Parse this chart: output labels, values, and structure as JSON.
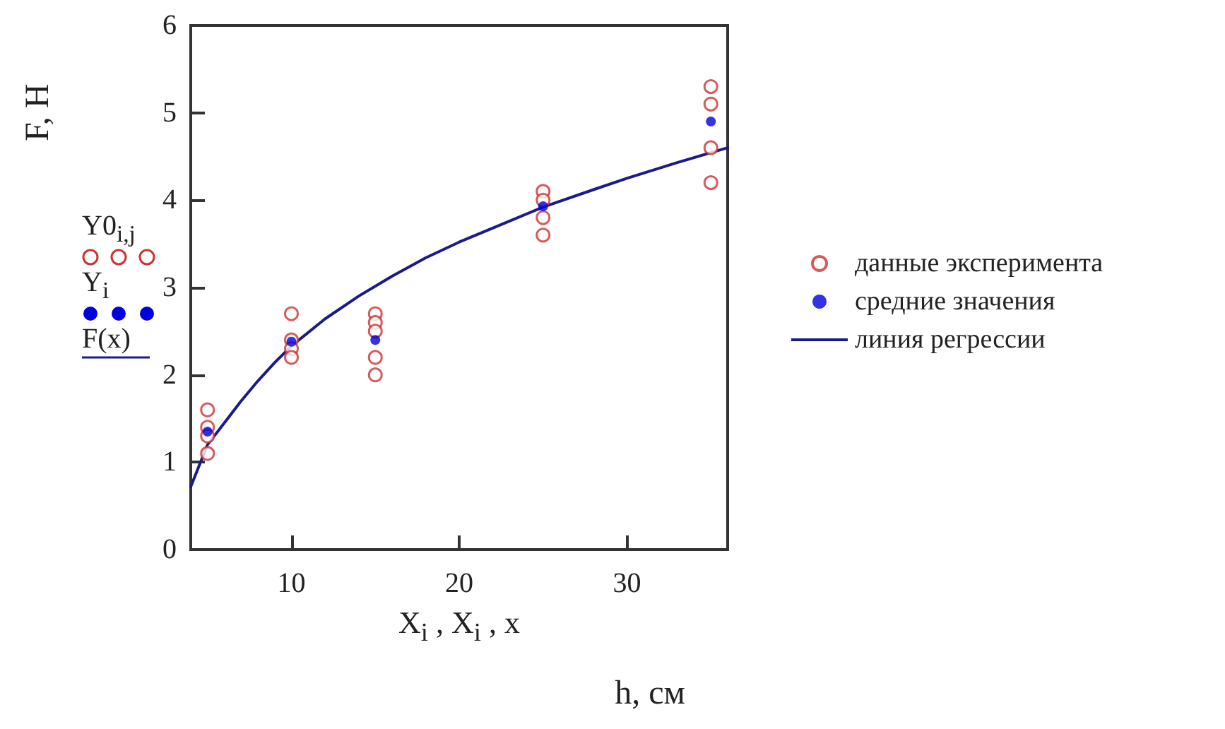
{
  "chart_data": {
    "type": "scatter",
    "ylabel": "F, H",
    "xlabel": "X$_{i}$ , X$_{i}$ , x",
    "annotations": [
      "Y0$_{i,j}$",
      "Y$_{i}$",
      "F(x)",
      "h, см"
    ],
    "series": [
      {
        "name": "данные эксперимента",
        "marker": "circle",
        "color": "#cc3333",
        "x": [
          5,
          5,
          5,
          5,
          10,
          10,
          10,
          10,
          15,
          15,
          15,
          15,
          15,
          25,
          25,
          25,
          25,
          35,
          35,
          35,
          35
        ],
        "values": [
          1.6,
          1.4,
          1.3,
          1.1,
          2.7,
          2.4,
          2.3,
          2.2,
          2.7,
          2.6,
          2.5,
          2.2,
          2.0,
          4.1,
          4.0,
          3.8,
          3.6,
          5.3,
          5.1,
          4.6,
          4.2
        ]
      },
      {
        "name": "средние значения",
        "marker": "circle",
        "color": "#0000dd",
        "x": [
          5,
          10,
          15,
          25,
          35
        ],
        "values": [
          1.35,
          2.38,
          2.4,
          3.93,
          4.9
        ]
      },
      {
        "name": "линия регрессии",
        "type": "line",
        "marker": "none",
        "color": "#1a1a8c",
        "x": [
          4,
          5,
          6,
          7,
          8,
          9,
          10,
          12,
          14,
          16,
          18,
          20,
          22,
          25,
          28,
          30,
          33,
          36
        ],
        "values": [
          0.72,
          1.2,
          1.45,
          1.7,
          1.93,
          2.14,
          2.33,
          2.64,
          2.9,
          3.13,
          3.34,
          3.52,
          3.68,
          3.92,
          4.12,
          4.25,
          4.43,
          4.6
        ]
      }
    ],
    "xlim": [
      4,
      36
    ],
    "xticks": [
      10,
      20,
      30
    ],
    "ylim": [
      0,
      6
    ],
    "yticks": [
      0,
      1,
      2,
      3,
      4,
      5,
      6
    ],
    "grid": false,
    "legend": "right"
  }
}
